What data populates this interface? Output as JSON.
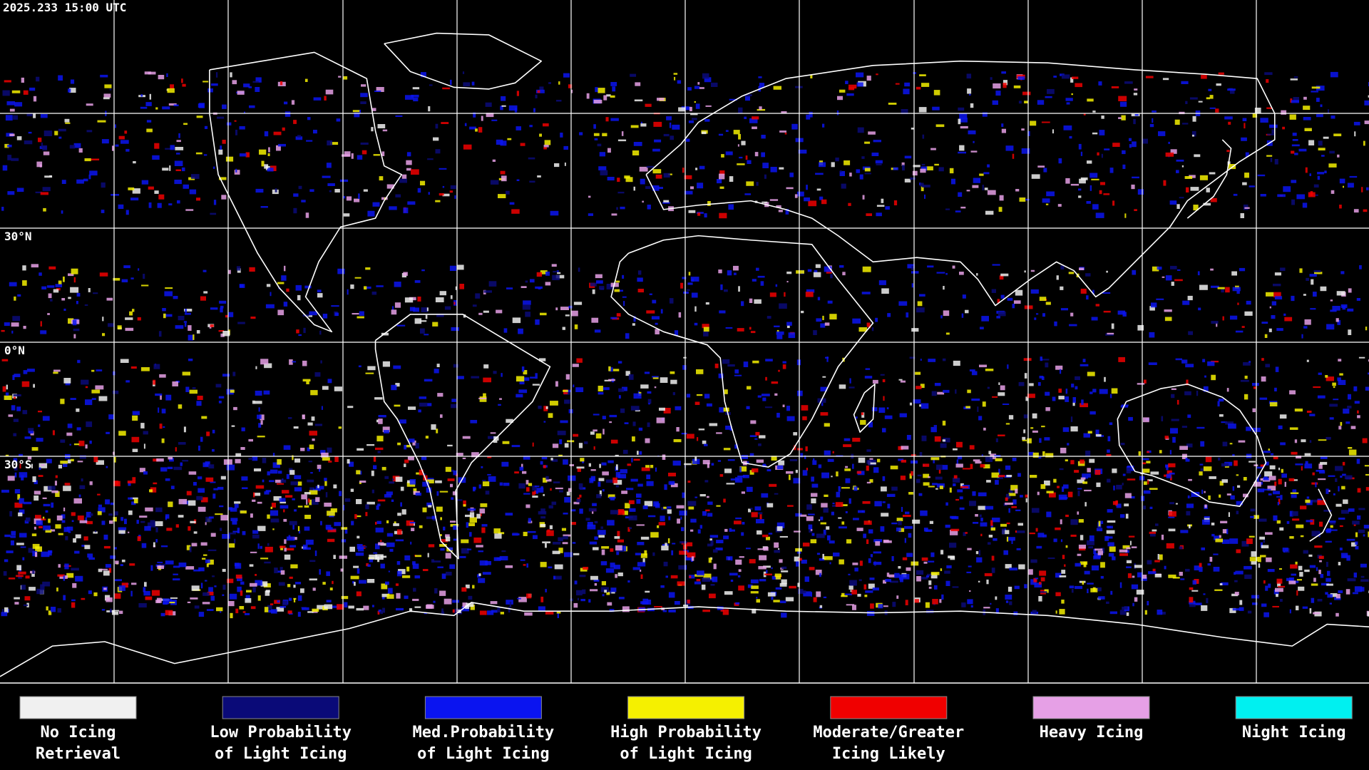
{
  "header": {
    "timestamp": "2025.233 15:00 UTC"
  },
  "map": {
    "lat_labels": [
      "30°N",
      "0°N",
      "30°S"
    ]
  },
  "legend": {
    "items": [
      {
        "label": [
          "No Icing",
          "Retrieval"
        ],
        "color": "#f0f0f0"
      },
      {
        "label": [
          "Low Probability",
          "of Light Icing"
        ],
        "color": "#0a0a78"
      },
      {
        "label": [
          "Med.Probability",
          "of Light Icing"
        ],
        "color": "#0a14f0"
      },
      {
        "label": [
          "High Probability",
          "of Light Icing"
        ],
        "color": "#f5f000"
      },
      {
        "label": [
          "Moderate/Greater",
          "Icing Likely"
        ],
        "color": "#f00000"
      },
      {
        "label": [
          "Heavy Icing"
        ],
        "color": "#e6a0e6"
      },
      {
        "label": [
          "Night Icing"
        ],
        "color": "#00f0f0"
      }
    ]
  }
}
